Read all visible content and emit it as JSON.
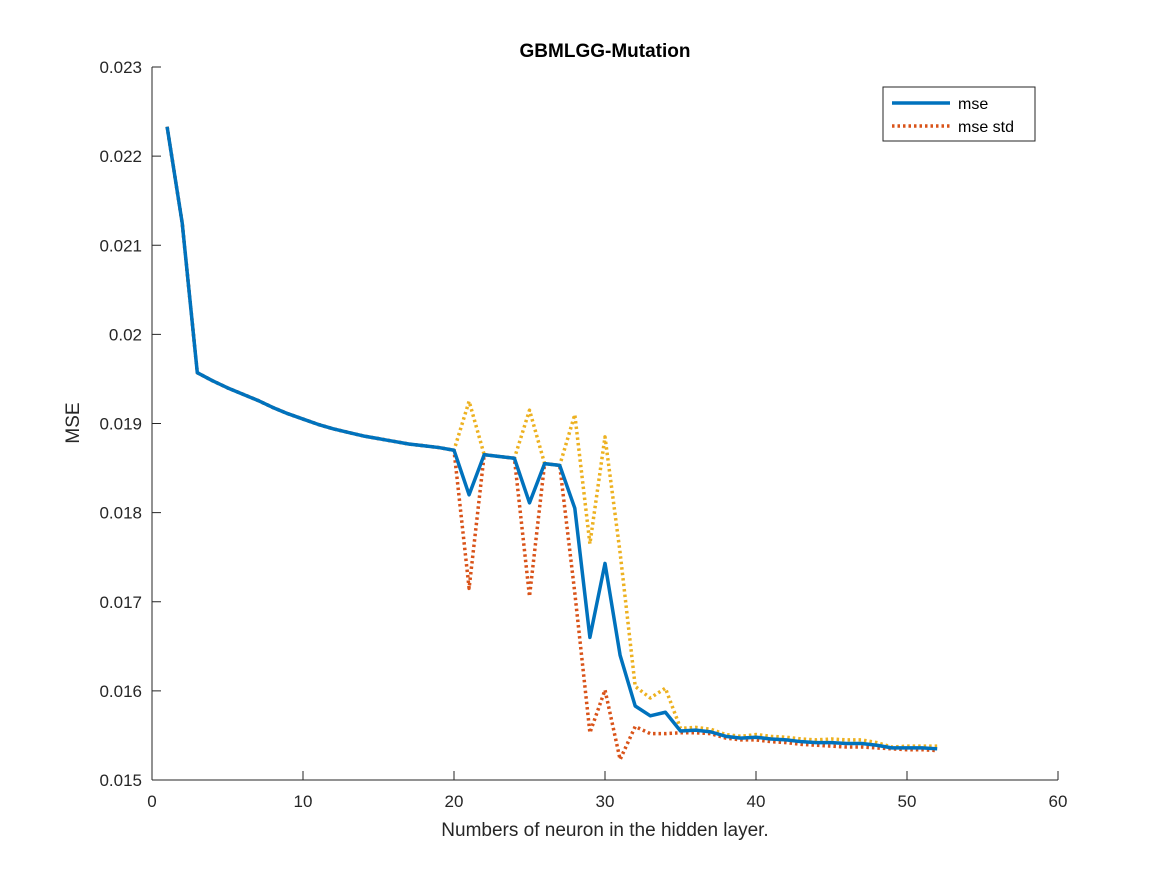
{
  "chart_data": {
    "type": "line",
    "title": "GBMLGG-Mutation",
    "xlabel": "Numbers of neuron in the hidden layer.",
    "ylabel": "MSE",
    "xlim": [
      0,
      60
    ],
    "ylim": [
      0.015,
      0.023
    ],
    "xticks": [
      "0",
      "10",
      "20",
      "30",
      "40",
      "50",
      "60"
    ],
    "yticks": [
      "0.015",
      "0.016",
      "0.017",
      "0.018",
      "0.019",
      "0.02",
      "0.021",
      "0.022",
      "0.023"
    ],
    "grid": false,
    "legend_position": "top-right",
    "x": [
      1,
      2,
      3,
      4,
      5,
      6,
      7,
      8,
      9,
      10,
      11,
      12,
      13,
      14,
      15,
      16,
      17,
      18,
      19,
      20,
      21,
      22,
      23,
      24,
      25,
      26,
      27,
      28,
      29,
      30,
      31,
      32,
      33,
      34,
      35,
      36,
      37,
      38,
      39,
      40,
      41,
      42,
      43,
      44,
      45,
      46,
      47,
      48,
      49,
      50,
      51,
      52
    ],
    "series": [
      {
        "name": "mse",
        "color": "#0072BD",
        "style": "solid",
        "values": [
          0.02233,
          0.02125,
          0.01957,
          0.01948,
          0.0194,
          0.01933,
          0.01926,
          0.01918,
          0.01911,
          0.01905,
          0.01899,
          0.01894,
          0.0189,
          0.01886,
          0.01883,
          0.0188,
          0.01877,
          0.01875,
          0.01873,
          0.0187,
          0.0182,
          0.01865,
          0.01863,
          0.01861,
          0.01811,
          0.01855,
          0.01853,
          0.01805,
          0.0166,
          0.01743,
          0.0164,
          0.01583,
          0.01572,
          0.01576,
          0.01555,
          0.01556,
          0.01554,
          0.01549,
          0.01547,
          0.01548,
          0.01546,
          0.01545,
          0.01543,
          0.01542,
          0.01542,
          0.01541,
          0.01541,
          0.01539,
          0.01536,
          0.01536,
          0.01536,
          0.01535
        ]
      },
      {
        "name": "mse std",
        "color": "#D95319",
        "style": "dotted",
        "values": [
          0.02233,
          0.02125,
          0.01957,
          0.01948,
          0.0194,
          0.01933,
          0.01926,
          0.01918,
          0.01911,
          0.01905,
          0.01899,
          0.01894,
          0.0189,
          0.01886,
          0.01883,
          0.0188,
          0.01877,
          0.01875,
          0.01873,
          0.0187,
          0.01715,
          0.01865,
          0.01863,
          0.01861,
          0.01706,
          0.01855,
          0.01853,
          0.0171,
          0.01553,
          0.01601,
          0.01523,
          0.0156,
          0.01552,
          0.01552,
          0.01553,
          0.01553,
          0.01552,
          0.01547,
          0.01545,
          0.01545,
          0.01543,
          0.01542,
          0.0154,
          0.01539,
          0.01538,
          0.01537,
          0.01537,
          0.01536,
          0.01535,
          0.01534,
          0.01534,
          0.01533
        ]
      },
      {
        "color": "#EDB120",
        "style": "dotted",
        "values": [
          0.02233,
          0.02125,
          0.01957,
          0.01948,
          0.0194,
          0.01933,
          0.01926,
          0.01918,
          0.01911,
          0.01905,
          0.01899,
          0.01894,
          0.0189,
          0.01886,
          0.01883,
          0.0188,
          0.01877,
          0.01875,
          0.01873,
          0.0187,
          0.01925,
          0.01865,
          0.01863,
          0.01861,
          0.01915,
          0.01855,
          0.01853,
          0.0191,
          0.01765,
          0.01885,
          0.01755,
          0.01605,
          0.01592,
          0.01603,
          0.01558,
          0.01559,
          0.01557,
          0.01551,
          0.01549,
          0.01551,
          0.01549,
          0.01548,
          0.01546,
          0.01545,
          0.01546,
          0.01545,
          0.01545,
          0.01542,
          0.01537,
          0.01538,
          0.01538,
          0.01538
        ]
      }
    ]
  }
}
